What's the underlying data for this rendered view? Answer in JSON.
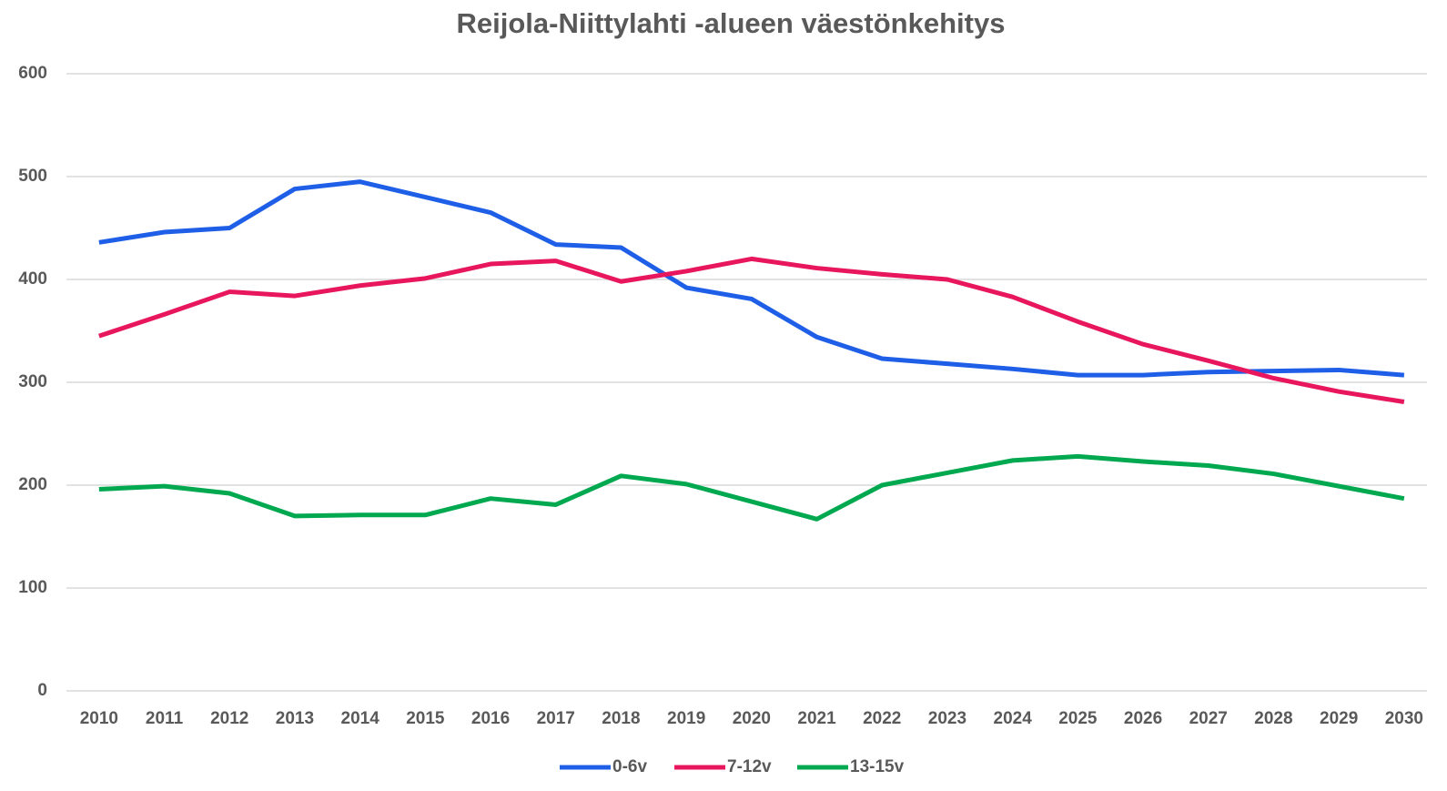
{
  "chart_data": {
    "type": "line",
    "title": "Reijola-Niittylahti -alueen väestönkehitys",
    "categories": [
      "2010",
      "2011",
      "2012",
      "2013",
      "2014",
      "2015",
      "2016",
      "2017",
      "2018",
      "2019",
      "2020",
      "2021",
      "2022",
      "2023",
      "2024",
      "2025",
      "2026",
      "2027",
      "2028",
      "2029",
      "2030"
    ],
    "series": [
      {
        "name": "0-6v",
        "color": "#1f5fe8",
        "values": [
          436,
          446,
          450,
          488,
          495,
          480,
          465,
          434,
          431,
          392,
          381,
          344,
          323,
          318,
          313,
          307,
          307,
          310,
          311,
          312,
          307
        ]
      },
      {
        "name": "7-12v",
        "color": "#e8175d",
        "values": [
          345,
          366,
          388,
          384,
          394,
          401,
          415,
          418,
          398,
          408,
          420,
          411,
          405,
          400,
          383,
          359,
          337,
          321,
          304,
          291,
          281
        ]
      },
      {
        "name": "13-15v",
        "color": "#00a84f",
        "values": [
          196,
          199,
          192,
          170,
          171,
          171,
          187,
          181,
          209,
          201,
          184,
          167,
          200,
          212,
          224,
          228,
          223,
          219,
          211,
          199,
          187
        ]
      }
    ],
    "ylim": [
      0,
      600
    ],
    "yticks": [
      0,
      100,
      200,
      300,
      400,
      500,
      600
    ],
    "grid": true,
    "legend": "bottom"
  }
}
